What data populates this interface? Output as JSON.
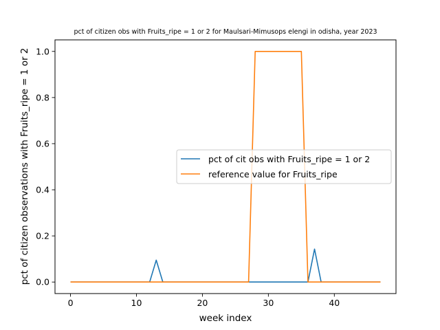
{
  "chart_data": {
    "type": "line",
    "title": "pct of citizen obs with Fruits_ripe = 1 or 2 for Maulsari-Mimusops elengi in odisha, year 2023",
    "xlabel": "week index",
    "ylabel": "pct of citizen observations with Fruits_ripe = 1 or 2",
    "xlim": [
      -2.35,
      49.35
    ],
    "ylim": [
      -0.05,
      1.05
    ],
    "xticks": [
      0,
      10,
      20,
      30,
      40
    ],
    "yticks": [
      0.0,
      0.2,
      0.4,
      0.6,
      0.8,
      1.0
    ],
    "xtick_labels": [
      "0",
      "10",
      "20",
      "30",
      "40"
    ],
    "ytick_labels": [
      "0.0",
      "0.2",
      "0.4",
      "0.6",
      "0.8",
      "1.0"
    ],
    "grid": false,
    "legend_position": "center-right",
    "series": [
      {
        "name": "pct of cit obs with Fruits_ripe = 1 or 2",
        "color": "#1f77b4",
        "x": [
          0,
          12,
          13,
          14,
          36,
          37,
          38,
          47
        ],
        "y": [
          0,
          0,
          0.095,
          0,
          0,
          0.143,
          0,
          0
        ]
      },
      {
        "name": "reference value for Fruits_ripe",
        "color": "#ff7f0e",
        "x": [
          0,
          27,
          28,
          35,
          36,
          47
        ],
        "y": [
          0,
          0,
          1,
          1,
          0,
          0
        ]
      }
    ]
  }
}
